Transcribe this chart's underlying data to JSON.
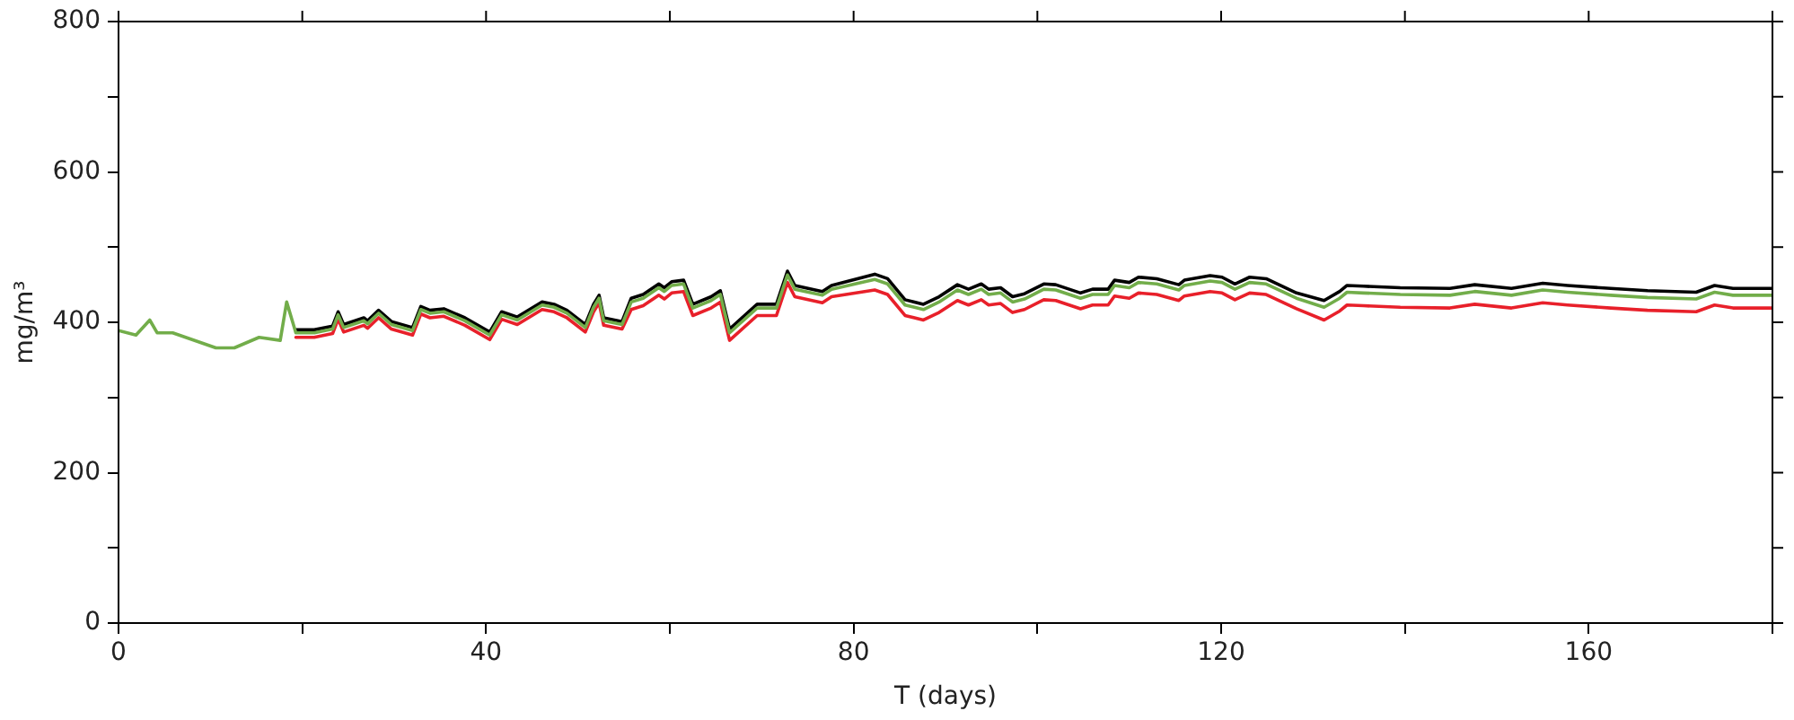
{
  "chart_data": {
    "type": "line",
    "xlabel": "T (days)",
    "ylabel": "mg/m³",
    "xlim": [
      0,
      180
    ],
    "ylim": [
      0,
      800
    ],
    "xticks": [
      0,
      {
        "value": 20,
        "label": null
      },
      40,
      {
        "value": 60,
        "label": null
      },
      80,
      {
        "value": 100,
        "label": null
      },
      120,
      {
        "value": 140,
        "label": null
      },
      160,
      {
        "value": 180,
        "label": null
      }
    ],
    "yticks": [
      0,
      {
        "value": 100,
        "label": null
      },
      200,
      {
        "value": 300,
        "label": null
      },
      400,
      {
        "value": 500,
        "label": null
      },
      600,
      {
        "value": 700,
        "label": null
      },
      800
    ],
    "grid": false,
    "legend": false,
    "marker": "none",
    "line_style": "solid",
    "x": [
      0,
      1.9,
      3.4,
      4.2,
      5.9,
      10.6,
      12.6,
      15.3,
      17.6,
      18.3,
      19.3,
      21.3,
      23.3,
      23.9,
      24.5,
      26.7,
      27.1,
      28.3,
      29.7,
      32,
      32.9,
      33.9,
      35.4,
      37.7,
      40.4,
      41.7,
      43.4,
      46.1,
      47.4,
      48.8,
      50.8,
      51.7,
      52.3,
      52.8,
      54.8,
      55.8,
      57.1,
      58.8,
      59.4,
      60.2,
      61.5,
      62.5,
      64.5,
      65.5,
      66.5,
      69.5,
      71.6,
      72.8,
      73.6,
      76.6,
      77.6,
      82.3,
      83.7,
      85.6,
      87.6,
      89.3,
      91.3,
      92.5,
      93.9,
      94.7,
      96,
      97.3,
      98.6,
      100.7,
      102,
      104.7,
      106,
      107.7,
      108.4,
      110,
      111,
      113,
      115.4,
      116,
      118.8,
      120.1,
      121.5,
      123.1,
      124.9,
      128.2,
      131.2,
      132.9,
      133.7,
      135.5,
      139.5,
      144.9,
      147.6,
      151.6,
      155,
      157.7,
      162.4,
      166.4,
      171.7,
      173.7,
      175.7,
      180
    ],
    "series": [
      {
        "color": "#000000",
        "values": [
          null,
          null,
          null,
          null,
          null,
          null,
          null,
          null,
          null,
          null,
          390,
          390,
          395,
          414,
          397,
          406,
          402,
          416,
          401,
          393,
          421,
          416,
          418,
          406,
          387,
          414,
          407,
          427,
          424,
          416,
          397,
          424,
          436,
          406,
          401,
          432,
          437,
          451,
          446,
          454,
          456,
          424,
          434,
          442,
          391,
          424,
          424,
          468,
          449,
          441,
          449,
          464,
          458,
          430,
          424,
          434,
          450,
          444,
          451,
          444,
          446,
          434,
          438,
          451,
          450,
          439,
          444,
          444,
          456,
          453,
          460,
          458,
          450,
          456,
          462,
          460,
          451,
          460,
          458,
          439,
          429,
          441,
          449,
          448,
          446,
          445,
          450,
          445,
          452,
          449,
          445,
          442,
          440,
          449,
          445,
          445
        ]
      },
      {
        "color": "#e8202a",
        "values": [
          null,
          null,
          null,
          null,
          null,
          null,
          null,
          null,
          null,
          null,
          380,
          380,
          385,
          404,
          387,
          396,
          392,
          406,
          391,
          383,
          411,
          406,
          408,
          396,
          377,
          404,
          397,
          417,
          414,
          406,
          387,
          414,
          426,
          396,
          391,
          417,
          422,
          436,
          431,
          439,
          441,
          409,
          419,
          427,
          376,
          409,
          409,
          453,
          434,
          426,
          434,
          443,
          437,
          409,
          403,
          413,
          429,
          423,
          430,
          423,
          425,
          413,
          417,
          430,
          429,
          418,
          423,
          423,
          435,
          432,
          439,
          437,
          429,
          435,
          441,
          439,
          430,
          439,
          437,
          418,
          403,
          415,
          423,
          422,
          420,
          419,
          424,
          419,
          426,
          423,
          419,
          416,
          414,
          423,
          419,
          419
        ]
      },
      {
        "color": "#72ad4a",
        "values": [
          389,
          383,
          403,
          386,
          386,
          366,
          366,
          380,
          376,
          427,
          386,
          386,
          391,
          410,
          393,
          402,
          398,
          412,
          397,
          389,
          417,
          412,
          414,
          402,
          383,
          410,
          403,
          423,
          420,
          412,
          393,
          420,
          432,
          402,
          397,
          427,
          432,
          446,
          441,
          449,
          451,
          419,
          429,
          437,
          386,
          419,
          419,
          463,
          444,
          436,
          444,
          457,
          451,
          423,
          417,
          427,
          443,
          437,
          444,
          437,
          439,
          427,
          431,
          444,
          443,
          432,
          437,
          437,
          449,
          446,
          453,
          451,
          443,
          449,
          455,
          453,
          444,
          453,
          451,
          432,
          420,
          432,
          440,
          439,
          437,
          436,
          441,
          436,
          443,
          440,
          436,
          433,
          431,
          440,
          436,
          436
        ]
      }
    ]
  }
}
